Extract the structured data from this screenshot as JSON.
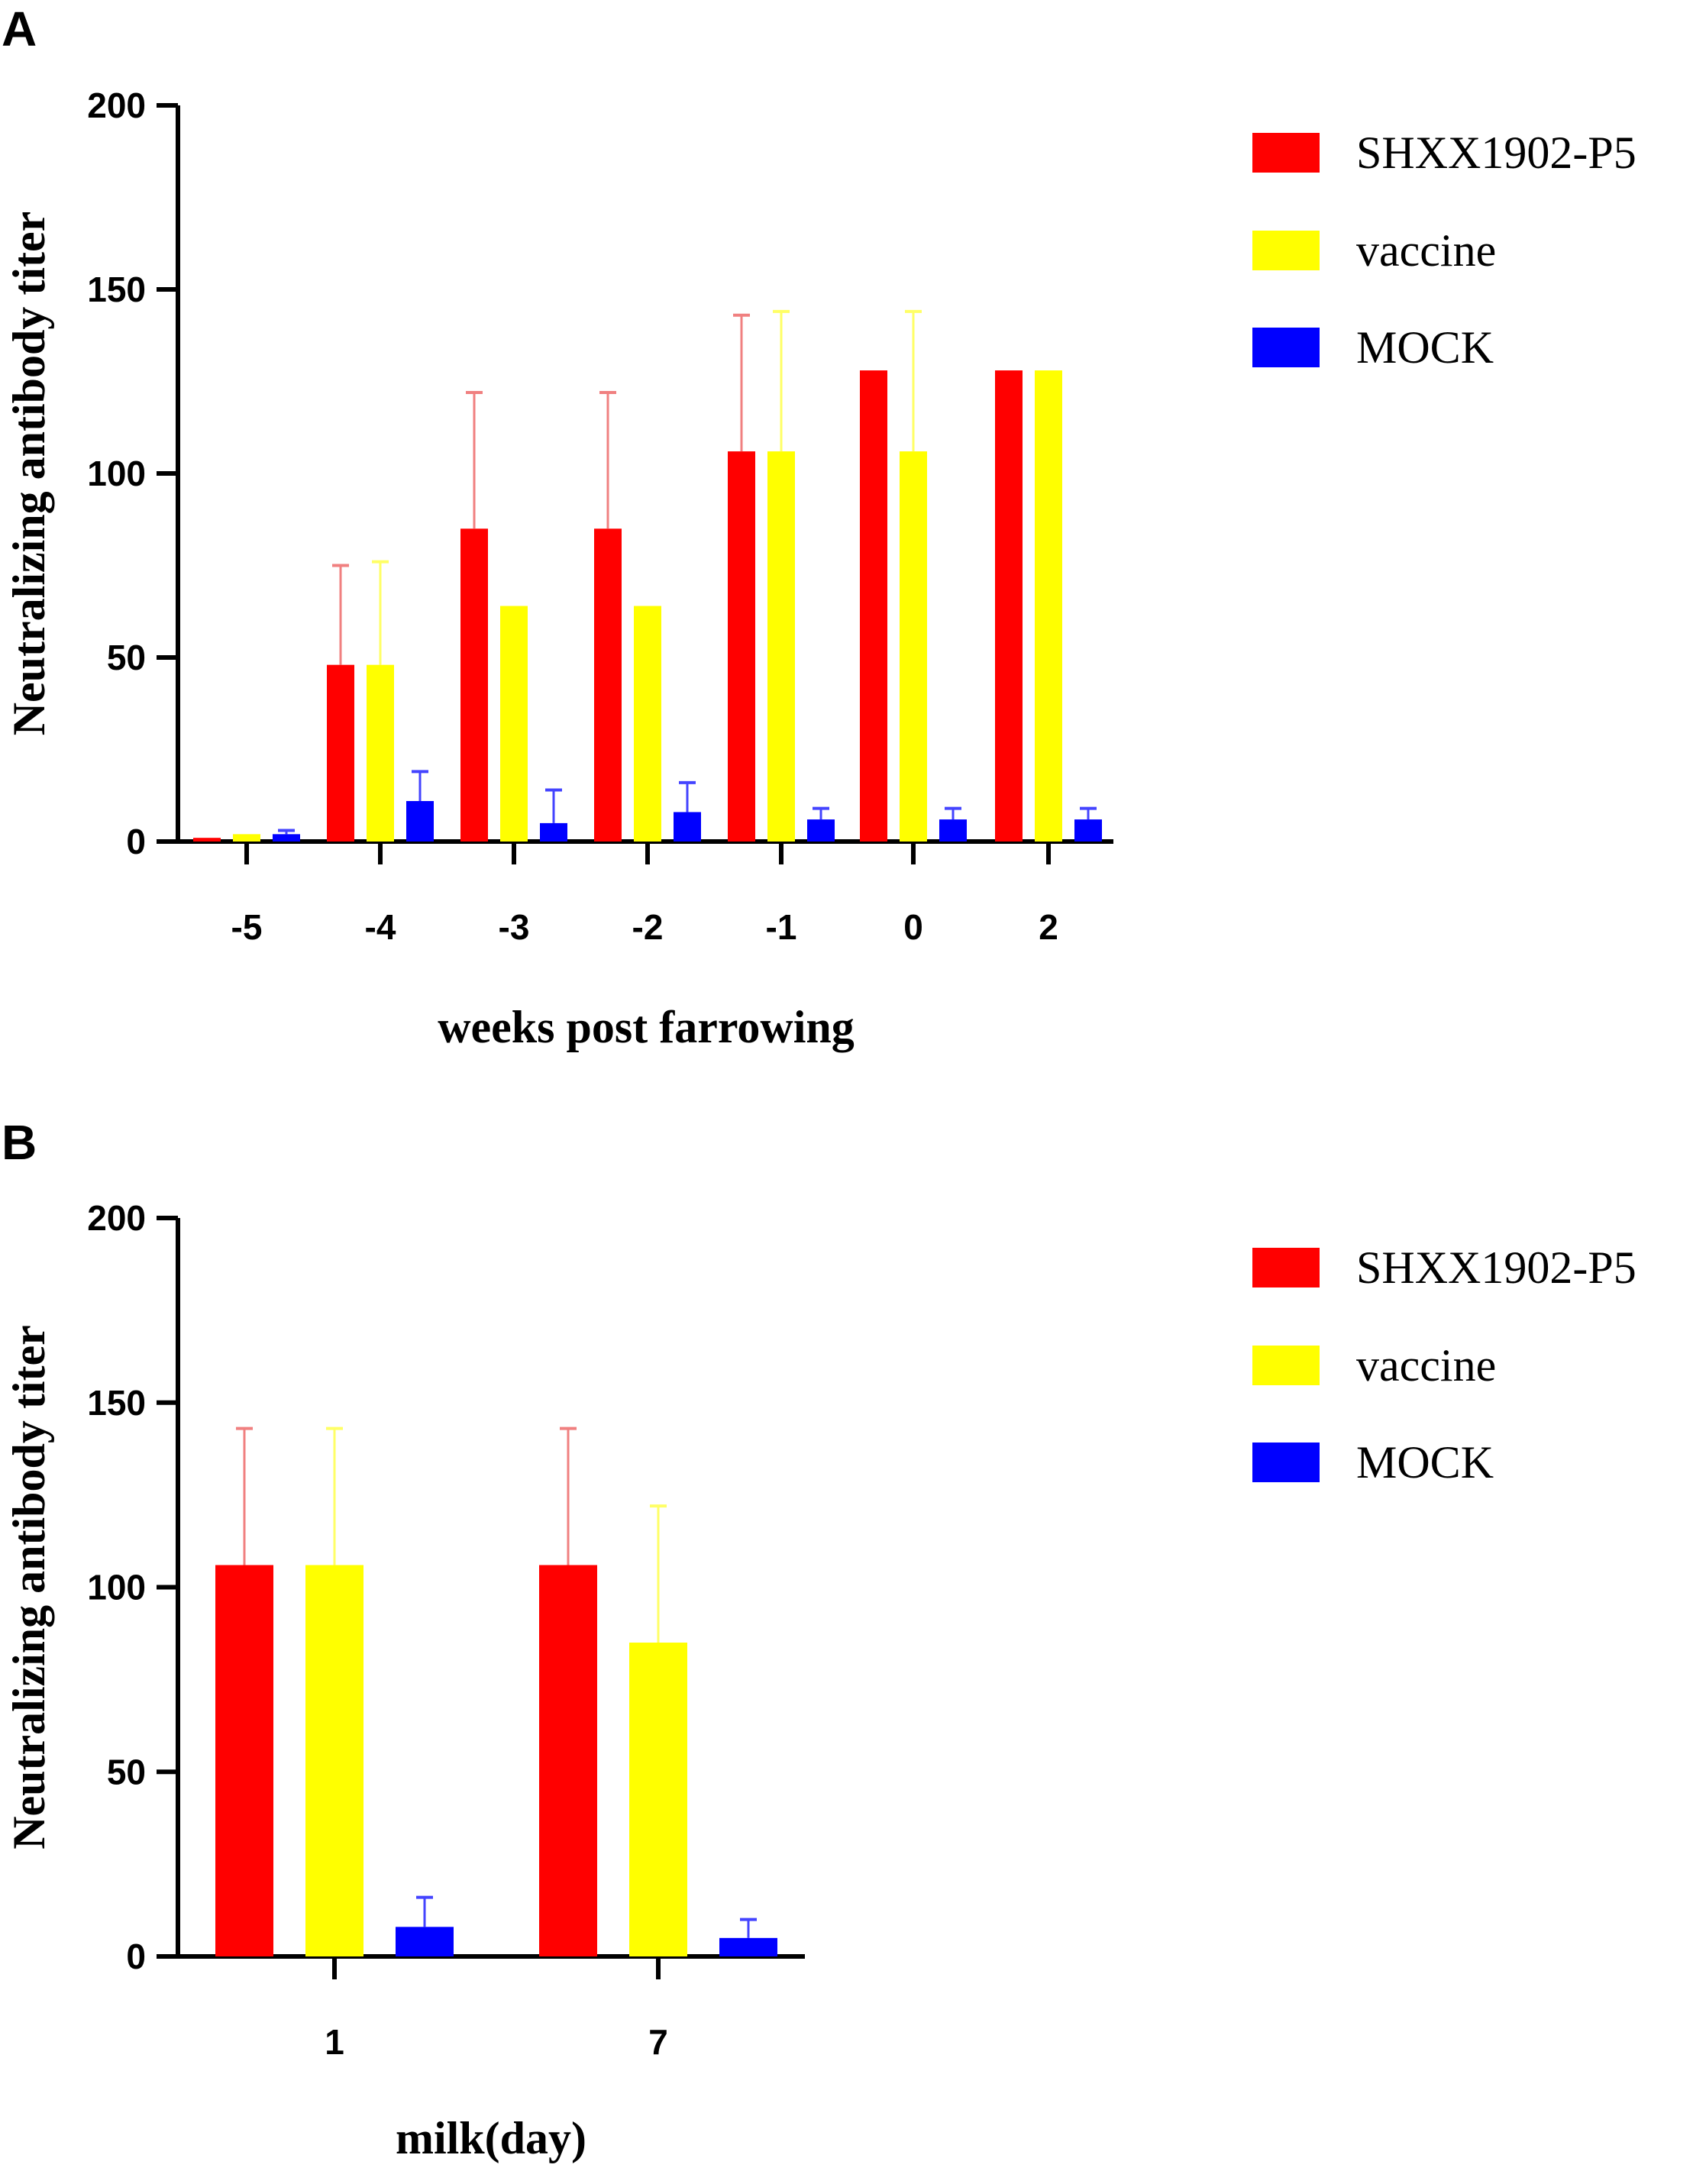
{
  "chart_data": [
    {
      "type": "bar",
      "panel": "A",
      "categories": [
        "-5",
        "-4",
        "-3",
        "-2",
        "-1",
        "0",
        "2"
      ],
      "series": [
        {
          "name": "SHXX1902-P5",
          "color": "#ff0000",
          "error_color": "#f08080",
          "values": [
            1,
            48,
            85,
            85,
            106,
            128,
            128
          ],
          "errors": [
            0,
            27,
            37,
            37,
            37,
            0,
            0
          ]
        },
        {
          "name": "vaccine",
          "color": "#ffff00",
          "error_color": "#ffff66",
          "values": [
            2,
            48,
            64,
            64,
            106,
            106,
            128
          ],
          "errors": [
            0,
            28,
            0,
            0,
            38,
            38,
            0
          ]
        },
        {
          "name": "MOCK",
          "color": "#0000ff",
          "error_color": "#4444ff",
          "values": [
            2,
            11,
            5,
            8,
            6,
            6,
            6
          ],
          "errors": [
            1,
            8,
            9,
            8,
            3,
            3,
            3
          ]
        }
      ],
      "yticks": [
        0,
        50,
        100,
        150,
        200
      ],
      "ylim": [
        0,
        200
      ],
      "ylabel": "Neutralizing antibody  titer",
      "xlabel": "weeks post farrowing",
      "legend_position": "right"
    },
    {
      "type": "bar",
      "panel": "B",
      "categories": [
        "1",
        "7"
      ],
      "series": [
        {
          "name": "SHXX1902-P5",
          "color": "#ff0000",
          "error_color": "#f08080",
          "values": [
            106,
            106
          ],
          "errors": [
            37,
            37
          ]
        },
        {
          "name": "vaccine",
          "color": "#ffff00",
          "error_color": "#ffff66",
          "values": [
            106,
            85
          ],
          "errors": [
            37,
            37
          ]
        },
        {
          "name": "MOCK",
          "color": "#0000ff",
          "error_color": "#4444ff",
          "values": [
            8,
            5
          ],
          "errors": [
            8,
            5
          ]
        }
      ],
      "yticks": [
        0,
        50,
        100,
        150,
        200
      ],
      "ylim": [
        0,
        200
      ],
      "ylabel": "Neutralizing antibody  titer",
      "xlabel": "milk(day)",
      "legend_position": "right"
    }
  ]
}
